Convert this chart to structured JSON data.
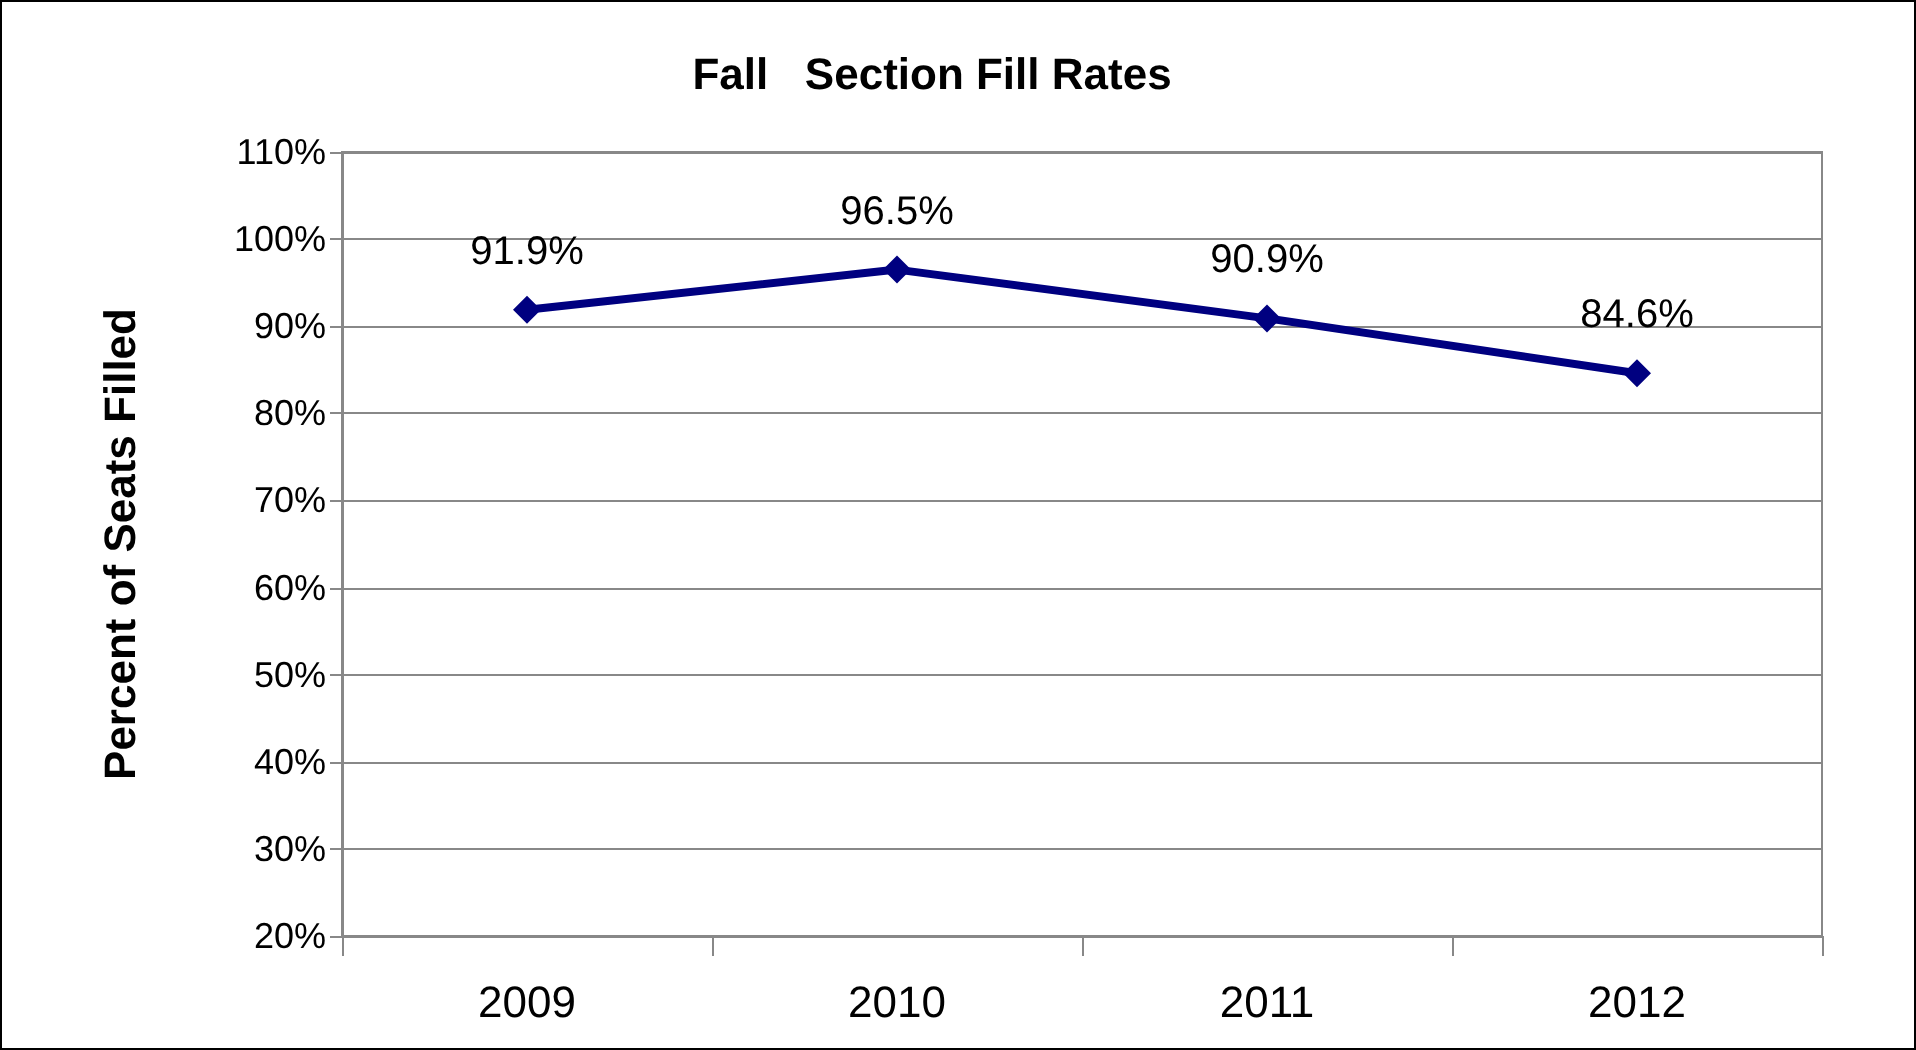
{
  "chart_data": {
    "type": "line",
    "title": "Fall   Section Fill Rates",
    "ylabel": "Percent of Seats Filled",
    "categories": [
      "2009",
      "2010",
      "2011",
      "2012"
    ],
    "series": [
      {
        "color": "#000080",
        "values": [
          91.9,
          96.5,
          90.9,
          84.6
        ],
        "value_labels": [
          "91.9%",
          "96.5%",
          "90.9%",
          "84.6%"
        ]
      }
    ],
    "ylim": [
      20,
      110
    ],
    "yticks": [
      {
        "value": 20,
        "label": "20%"
      },
      {
        "value": 30,
        "label": "30%"
      },
      {
        "value": 40,
        "label": "40%"
      },
      {
        "value": 50,
        "label": "50%"
      },
      {
        "value": 60,
        "label": "60%"
      },
      {
        "value": 70,
        "label": "70%"
      },
      {
        "value": 80,
        "label": "80%"
      },
      {
        "value": 90,
        "label": "90%"
      },
      {
        "value": 100,
        "label": "100%"
      },
      {
        "value": 110,
        "label": "110%"
      }
    ],
    "grid": "y",
    "marker": "diamond",
    "line_style": "solid"
  }
}
